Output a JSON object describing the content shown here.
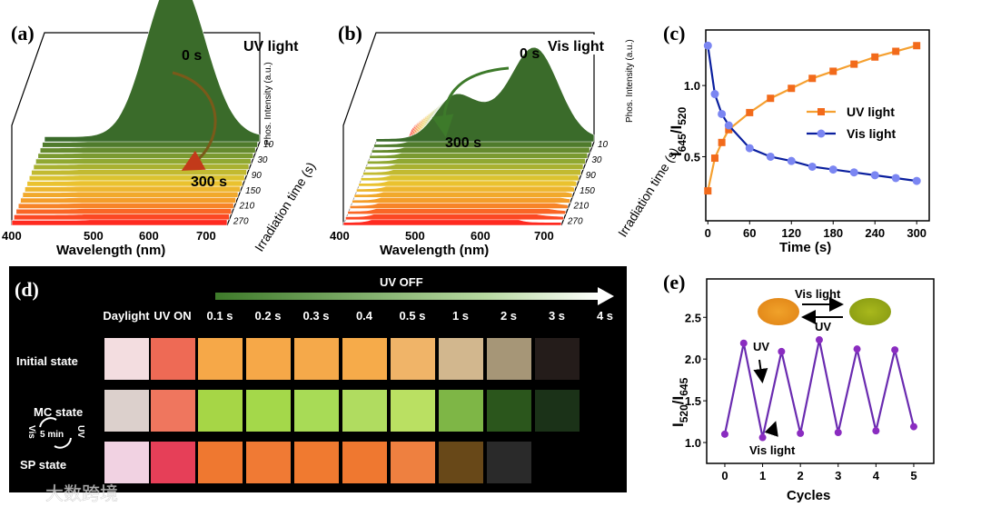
{
  "panel_labels": {
    "a": "(a)",
    "b": "(b)",
    "c": "(c)",
    "d": "(d)",
    "e": "(e)"
  },
  "panel_a": {
    "light_label": "UV light",
    "start_label": "0 s",
    "end_label": "300 s",
    "x_label": "Wavelength (nm)",
    "x_ticks": [
      "400",
      "500",
      "600",
      "700"
    ],
    "y_label": "Phos. Intensity (a.u.)",
    "z_label": "Irradiation time (s)",
    "z_ticks": [
      "10",
      "30",
      "90",
      "150",
      "210",
      "270"
    ]
  },
  "panel_b": {
    "light_label": "Vis light",
    "start_label": "0 s",
    "end_label": "300 s",
    "x_label": "Wavelength (nm)",
    "x_ticks": [
      "400",
      "500",
      "600",
      "700"
    ],
    "y_label": "Phos. Intensity (a.u.)",
    "z_label": "Irradiation time (s)",
    "z_ticks": [
      "10",
      "30",
      "90",
      "150",
      "210",
      "270"
    ]
  },
  "panel_d": {
    "uv_off_label": "UV OFF",
    "columns": [
      "Daylight",
      "UV ON",
      "0.1 s",
      "0.2 s",
      "0.3 s",
      "0.4",
      "0.5 s",
      "1 s",
      "2 s",
      "3 s",
      "4 s"
    ],
    "rows": [
      {
        "label": "Initial state",
        "colors": [
          "#f3dde0",
          "#ee6a55",
          "#f6a848",
          "#f6a848",
          "#f5a94a",
          "#f6ab4a",
          "#f0b468",
          "#d2b78e",
          "#a69677",
          "#241c1a",
          null
        ]
      },
      {
        "label": "MC state",
        "colors": [
          "#dcd0cc",
          "#ef765e",
          "#a6d646",
          "#a4d84a",
          "#a8db56",
          "#b0dc60",
          "#bae062",
          "#7eb646",
          "#2b561c",
          "#1b3218",
          null
        ]
      },
      {
        "label": "SP  state",
        "colors": [
          "#f1d2e2",
          "#e63f58",
          "#ef7830",
          "#f07a34",
          "#f07a30",
          "#ef7830",
          "#ee8040",
          "#684818",
          "#2a2a2a",
          null,
          null
        ]
      }
    ],
    "cycle_label": "5 min",
    "cycle_left": "Vis",
    "cycle_right": "UV"
  },
  "watermark": "大数跨境",
  "chart_data": [
    {
      "panel": "c",
      "type": "line",
      "xlabel": "Time (s)",
      "ylabel": "I645/I520",
      "ylabel_main": "I",
      "ylabel_sub1": "645",
      "ylabel_slash": "/I",
      "ylabel_sub2": "520",
      "xlim": [
        -3,
        318
      ],
      "ylim": [
        0.05,
        1.39
      ],
      "x_ticks": [
        "0",
        "60",
        "120",
        "180",
        "240",
        "300"
      ],
      "y_ticks": [
        "0.5",
        "1.0"
      ],
      "legend_position": "center-right",
      "x": [
        0,
        10,
        20,
        30,
        60,
        90,
        120,
        150,
        180,
        210,
        240,
        270,
        300
      ],
      "series": [
        {
          "name": "UV light",
          "color": "#f5a030",
          "marker_color": "#f26a1b",
          "marker": "square",
          "values": [
            0.26,
            0.49,
            0.6,
            0.69,
            0.81,
            0.91,
            0.98,
            1.05,
            1.1,
            1.15,
            1.2,
            1.24,
            1.28
          ]
        },
        {
          "name": "Vis light",
          "color": "#0a1f9e",
          "marker_color": "#7b86f2",
          "marker": "circle",
          "values": [
            1.28,
            0.94,
            0.8,
            0.72,
            0.56,
            0.5,
            0.47,
            0.43,
            0.41,
            0.39,
            0.37,
            0.35,
            0.33
          ]
        }
      ]
    },
    {
      "panel": "e",
      "type": "line",
      "xlabel": "Cycles",
      "ylabel": "I520/I645",
      "ylabel_main": "I",
      "ylabel_sub1": "520",
      "ylabel_slash": "/I",
      "ylabel_sub2": "645",
      "xlim": [
        -0.48,
        5.53
      ],
      "ylim": [
        0.75,
        2.96
      ],
      "x_ticks": [
        "0",
        "1",
        "2",
        "3",
        "4",
        "5"
      ],
      "y_ticks": [
        "1.0",
        "1.5",
        "2.0",
        "2.5"
      ],
      "x": [
        0,
        0.5,
        1,
        1.5,
        2,
        2.5,
        3,
        3.5,
        4,
        4.5,
        5
      ],
      "series": [
        {
          "name": "I520/I645",
          "color": "#6a2bb0",
          "marker_color": "#8a2cc0",
          "values": [
            1.1,
            2.19,
            1.06,
            2.09,
            1.11,
            2.23,
            1.12,
            2.12,
            1.14,
            2.11,
            1.19
          ]
        }
      ],
      "annotations": {
        "uv": "UV",
        "vis": "Vis light",
        "inset_top": "Vis light",
        "inset_bottom": "UV"
      }
    }
  ]
}
